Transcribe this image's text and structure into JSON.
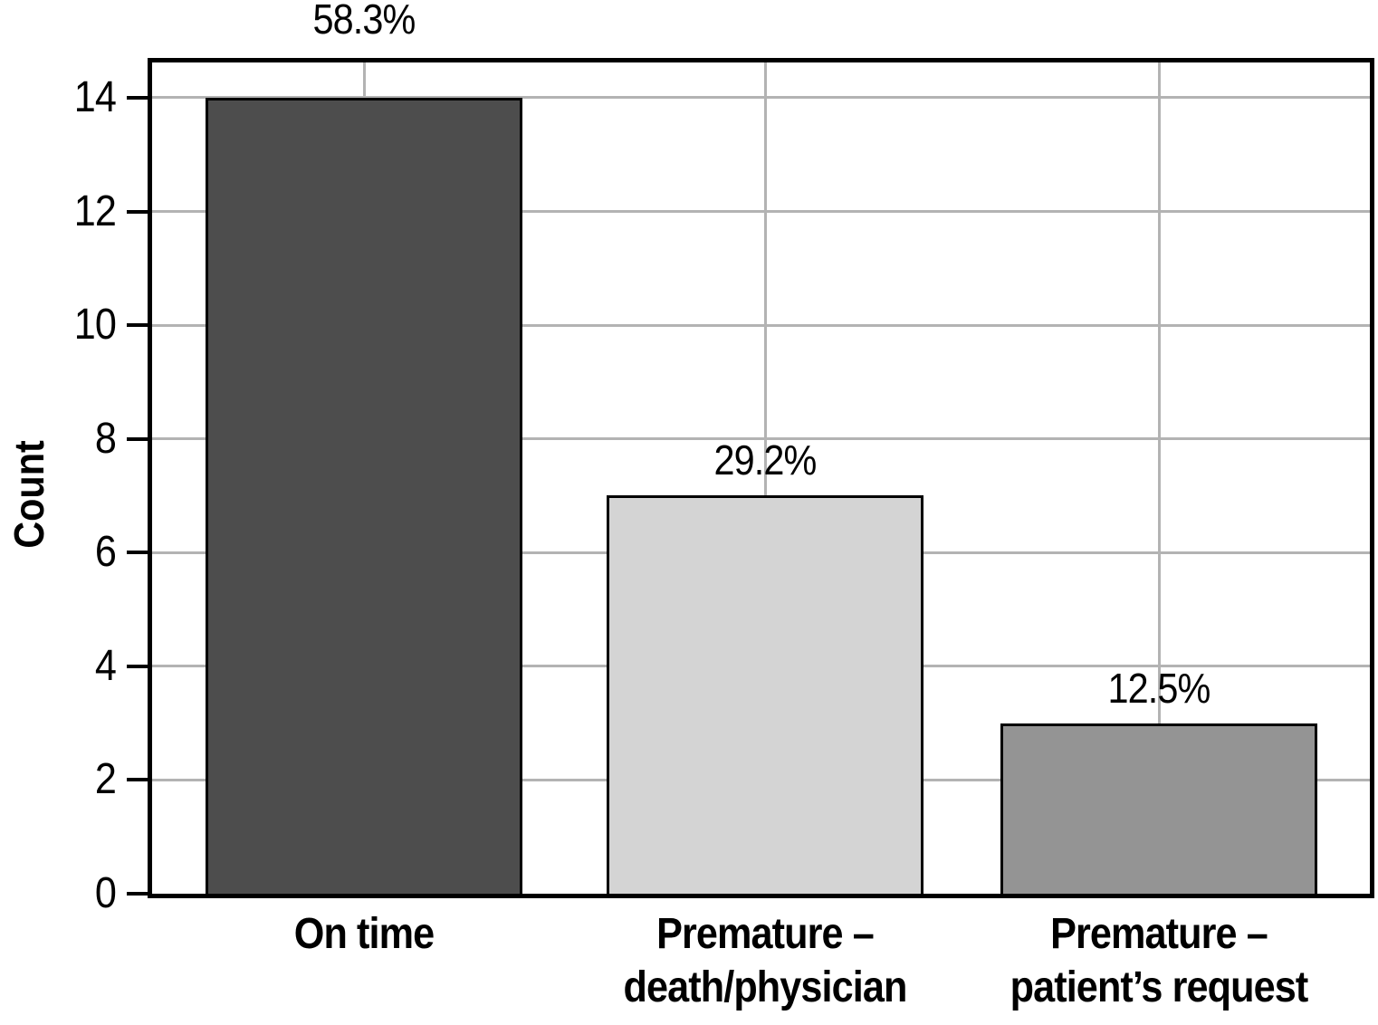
{
  "chart_data": {
    "type": "bar",
    "title": "",
    "ylabel": "Count",
    "xlabel": "",
    "categories": [
      "On time",
      "Premature – death/physician",
      "Premature – patient’s request"
    ],
    "category_lines": [
      [
        "On time"
      ],
      [
        "Premature –",
        "death/physician"
      ],
      [
        "Premature –",
        "patient’s request"
      ]
    ],
    "values": [
      14,
      7,
      3
    ],
    "value_labels": [
      "58.3%",
      "29.2%",
      "12.5%"
    ],
    "bar_colors": [
      "#4d4d4d",
      "#d4d4d4",
      "#949494"
    ],
    "bar_border_color": "#000000",
    "yticks": [
      0,
      2,
      4,
      6,
      8,
      10,
      12,
      14
    ],
    "ytick_labels": [
      "0",
      "2",
      "4",
      "6",
      "8",
      "10",
      "12",
      "14"
    ],
    "ylim": [
      0,
      14.62
    ],
    "grid": true,
    "gridline_color": "#b3b3b3",
    "plot_border_color": "#000000",
    "background_color": "#ffffff",
    "legend": "none"
  }
}
